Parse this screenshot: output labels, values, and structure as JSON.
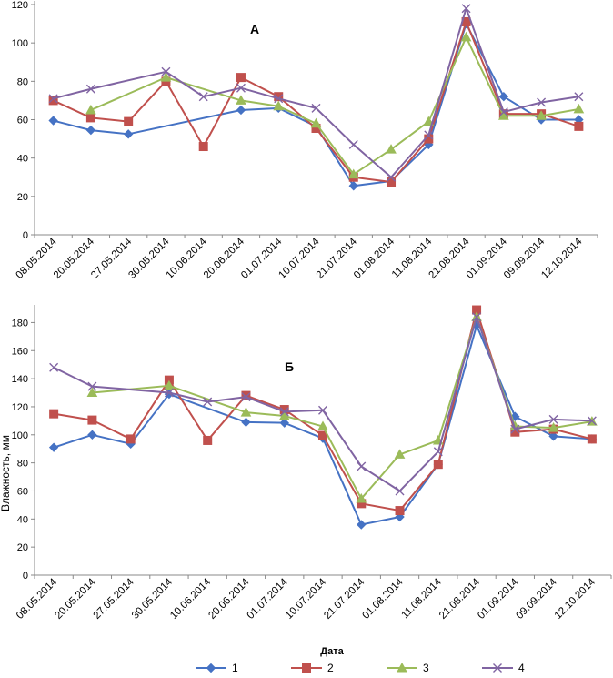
{
  "chart_data": [
    {
      "type": "line",
      "title": "А",
      "xlabel": "",
      "ylabel": "",
      "ylim": [
        0,
        120
      ],
      "yticks": [
        0,
        20,
        40,
        60,
        80,
        100,
        120
      ],
      "categories": [
        "08.05.2014",
        "20.05.2014",
        "27.05.2014",
        "30.05.2014",
        "10.06.2014",
        "20.06.2014",
        "01.07.2014",
        "10.07.2014",
        "21.07.2014",
        "01.08.2014",
        "11.08.2014",
        "21.08.2014",
        "01.09.2014",
        "09.09.2014",
        "12.10.2014"
      ],
      "series": [
        {
          "name": "1",
          "values": [
            59.5,
            54.5,
            52.5,
            null,
            null,
            65,
            66,
            56.5,
            25.5,
            28,
            47,
            110,
            72,
            60,
            60
          ]
        },
        {
          "name": "2",
          "values": [
            70,
            61,
            59,
            80,
            46,
            82,
            72,
            55.5,
            30,
            27.5,
            50,
            111,
            63,
            63,
            56.5
          ]
        },
        {
          "name": "3",
          "values": [
            null,
            65,
            null,
            82,
            null,
            70,
            67,
            58,
            31.5,
            44.5,
            59,
            103,
            62,
            62,
            65.5
          ]
        },
        {
          "name": "4",
          "values": [
            71,
            76,
            null,
            85,
            72,
            76.5,
            71,
            66,
            47,
            30,
            52,
            118,
            64,
            69,
            72
          ]
        }
      ],
      "breaks": [
        {
          "series": "4",
          "values": [
            null,
            null,
            null,
            null,
            null,
            77,
            71
          ]
        }
      ]
    },
    {
      "type": "line",
      "title": "Б",
      "xlabel": "Дата",
      "ylabel": "Влажность, мм",
      "ylim": [
        0,
        190
      ],
      "yticks": [
        0,
        20,
        40,
        60,
        80,
        100,
        120,
        140,
        160,
        180
      ],
      "categories": [
        "08.05.2014",
        "20.05.2014",
        "27.05.2014",
        "30.05.2014",
        "10.06.2014",
        "20.06.2014",
        "01.07.2014",
        "10.07.2014",
        "21.07.2014",
        "01.08.2014",
        "11.08.2014",
        "21.08.2014",
        "01.09.2014",
        "09.09.2014",
        "12.10.2014"
      ],
      "series": [
        {
          "name": "1",
          "values": [
            91,
            100,
            93.5,
            129,
            null,
            109,
            108.5,
            97.5,
            36,
            41.5,
            79,
            178,
            113,
            99,
            97
          ]
        },
        {
          "name": "2",
          "values": [
            115,
            110.5,
            97,
            139,
            96,
            128,
            118,
            99.5,
            51,
            46,
            79,
            189,
            102,
            104,
            97
          ]
        },
        {
          "name": "3",
          "values": [
            null,
            130,
            null,
            135,
            null,
            116,
            113.5,
            106,
            54.5,
            86,
            96,
            184,
            106,
            105,
            109.5
          ]
        },
        {
          "name": "4",
          "values": [
            148,
            134.5,
            null,
            130,
            123.5,
            127,
            116.5,
            117.5,
            77.5,
            60,
            88,
            184,
            104,
            111,
            110
          ]
        }
      ]
    }
  ],
  "legend": {
    "label": "Дата",
    "entries": [
      {
        "name": "1",
        "color": "#4572C4",
        "marker": "diamond"
      },
      {
        "name": "2",
        "color": "#C0504D",
        "marker": "square"
      },
      {
        "name": "3",
        "color": "#9BBB59",
        "marker": "triangle"
      },
      {
        "name": "4",
        "color": "#8064A2",
        "marker": "x"
      }
    ]
  }
}
